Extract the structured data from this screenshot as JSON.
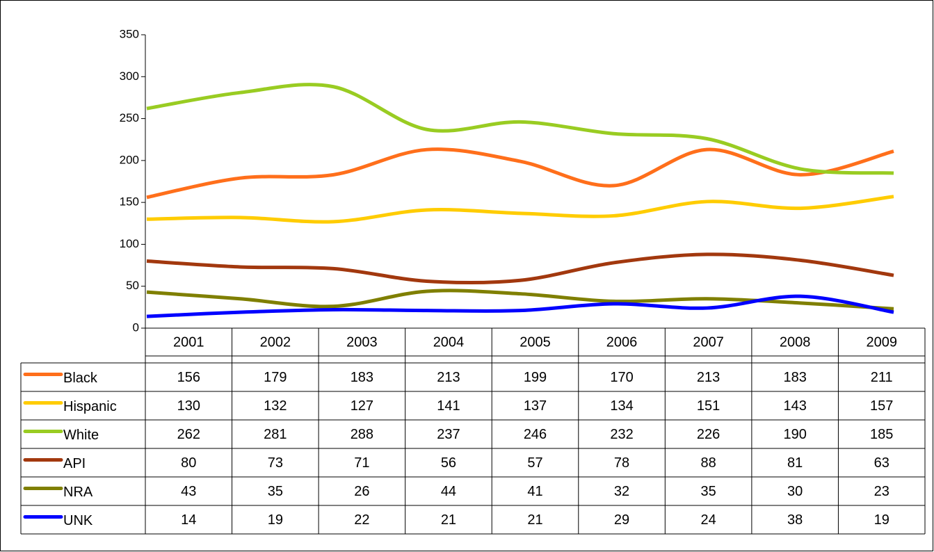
{
  "chart_data": {
    "type": "line",
    "categories": [
      "2001",
      "2002",
      "2003",
      "2004",
      "2005",
      "2006",
      "2007",
      "2008",
      "2009"
    ],
    "series": [
      {
        "name": "Black",
        "color": "#ff6f1b",
        "values": [
          156,
          179,
          183,
          213,
          199,
          170,
          213,
          183,
          211
        ]
      },
      {
        "name": "Hispanic",
        "color": "#ffcc00",
        "values": [
          130,
          132,
          127,
          141,
          137,
          134,
          151,
          143,
          157
        ]
      },
      {
        "name": "White",
        "color": "#99cc22",
        "values": [
          262,
          281,
          288,
          237,
          246,
          232,
          226,
          190,
          185
        ]
      },
      {
        "name": "API",
        "color": "#a2380e",
        "values": [
          80,
          73,
          71,
          56,
          57,
          78,
          88,
          81,
          63
        ]
      },
      {
        "name": "NRA",
        "color": "#7f7f00",
        "values": [
          43,
          35,
          26,
          44,
          41,
          32,
          35,
          30,
          23
        ]
      },
      {
        "name": "UNK",
        "color": "#0000ff",
        "values": [
          14,
          19,
          22,
          21,
          21,
          29,
          24,
          38,
          19
        ]
      }
    ],
    "ylim": [
      0,
      350
    ],
    "yticks": [
      0,
      50,
      100,
      150,
      200,
      250,
      300,
      350
    ],
    "grid": false,
    "smooth": true
  }
}
